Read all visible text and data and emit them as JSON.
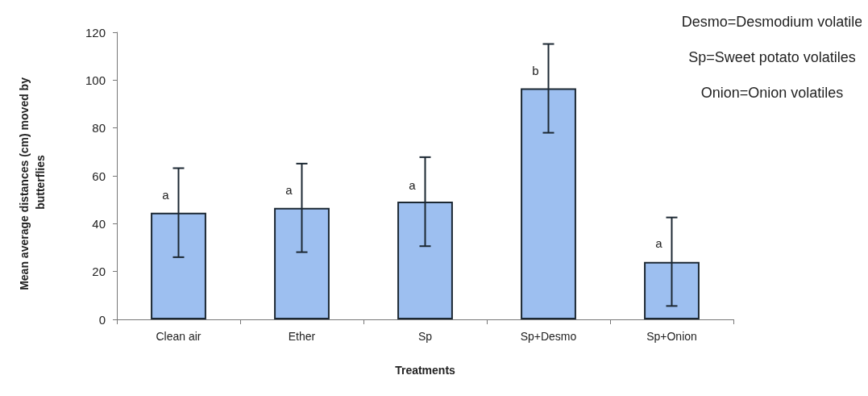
{
  "chart_data": {
    "type": "bar",
    "xlabel": "Treatments",
    "ylabel": "Mean average distances (cm) moved by butterflies",
    "categories": [
      "Clean air",
      "Ether",
      "Sp",
      "Sp+Desmo",
      "Sp+Onion"
    ],
    "values": [
      44.6,
      46.6,
      49.2,
      96.6,
      24.0
    ],
    "errors": [
      [
        26.0,
        63.2
      ],
      [
        28.1,
        65.1
      ],
      [
        30.6,
        67.8
      ],
      [
        78.0,
        115.1
      ],
      [
        5.6,
        42.6
      ]
    ],
    "color": "#9dbff0",
    "ylim": [
      0,
      120
    ],
    "yticks": [
      0,
      20,
      40,
      60,
      80,
      100,
      120
    ],
    "grid": false,
    "annotations": [
      {
        "text": "a",
        "x": "Clean air",
        "y": 52
      },
      {
        "text": "a",
        "x": "Ether",
        "y": 54
      },
      {
        "text": "a",
        "x": "Sp",
        "y": 56
      },
      {
        "text": "b",
        "x": "Sp+Desmo",
        "y": 104
      },
      {
        "text": "a",
        "x": "Sp+Onion",
        "y": 32
      },
      "Desmo=Desmodium volatile",
      "Sp=Sweet potato volatiles",
      "Onion=Onion volatiles"
    ]
  }
}
